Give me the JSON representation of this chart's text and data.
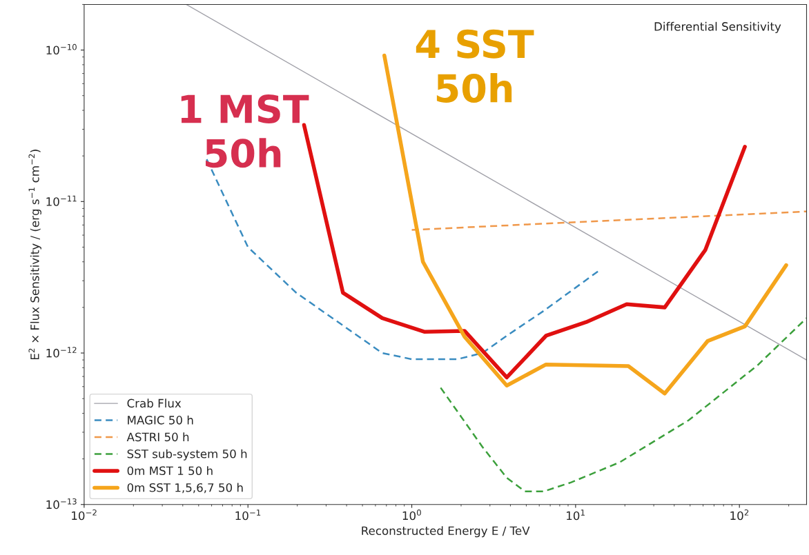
{
  "chart_data": {
    "type": "line",
    "xlabel": "Reconstructed Energy E / TeV",
    "ylabel": "E$^{2}$ × Flux Sensitivity / (erg s$^{−1}$ cm$^{−2}$)",
    "log": "xy",
    "grid": false,
    "legend": "bottom left",
    "xlim": [
      0.01,
      257
    ],
    "ylim": [
      1e-13,
      2e-10
    ],
    "xticks": [
      {
        "value": 0.01,
        "label": "10$^{−2}$"
      },
      {
        "value": 0.1,
        "label": "10$^{−1}$"
      },
      {
        "value": 1,
        "label": "10$^{0}$"
      },
      {
        "value": 10,
        "label": "10$^{1}$"
      },
      {
        "value": 100,
        "label": "10$^{2}$"
      }
    ],
    "yticks": [
      {
        "value": 1e-13,
        "label": "10$^{−13}$"
      },
      {
        "value": 1e-12,
        "label": "10$^{−12}$"
      },
      {
        "value": 1e-11,
        "label": "10$^{−11}$"
      },
      {
        "value": 1e-10,
        "label": "10$^{−10}$"
      }
    ],
    "annotations": [
      "Differential Sensitivity",
      "1 MST\n50h",
      "4 SST\n50h"
    ],
    "series": [
      {
        "name": "Crab Flux",
        "color": "#a0a0a8",
        "line_style": "solid",
        "x": [
          0.042,
          257
        ],
        "values": [
          2e-10,
          9e-13
        ]
      },
      {
        "name": "MAGIC 50 h",
        "color": "#3a8cc0",
        "line_style": "dashed",
        "x": [
          0.056,
          0.1,
          0.197,
          0.66,
          1.0,
          1.9,
          2.7,
          3.8,
          6.4,
          13.9
        ],
        "values": [
          1.9e-11,
          5e-12,
          2.5e-12,
          1e-12,
          9.1e-13,
          9.1e-13,
          1e-12,
          1.3e-12,
          1.9e-12,
          3.5e-12
        ]
      },
      {
        "name": "ASTRI 50 h",
        "color": "#f0984a",
        "line_style": "dashed",
        "x": [
          1.0,
          257
        ],
        "values": [
          6.5e-12,
          8.6e-12
        ]
      },
      {
        "name": "SST sub-system 50 h",
        "color": "#3ca03c",
        "line_style": "dashed",
        "x": [
          1.5,
          2.7,
          3.8,
          4.9,
          6.4,
          9.4,
          18.6,
          49,
          129,
          257
        ],
        "values": [
          5.9e-13,
          2.4e-13,
          1.5e-13,
          1.22e-13,
          1.22e-13,
          1.4e-13,
          1.9e-13,
          3.6e-13,
          8.3e-13,
          1.7e-12
        ]
      },
      {
        "name": "0m MST 1 50 h",
        "color": "#e01010",
        "line_style": "solid",
        "x": [
          0.22,
          0.38,
          0.66,
          1.2,
          2.1,
          3.8,
          6.6,
          11.6,
          20.5,
          35,
          62,
          108
        ],
        "values": [
          3.2e-11,
          2.5e-12,
          1.7e-12,
          1.38e-12,
          1.4e-12,
          6.9e-13,
          1.3e-12,
          1.6e-12,
          2.1e-12,
          2e-12,
          4.8e-12,
          2.3e-11
        ]
      },
      {
        "name": "0m SST 1,5,6,7 50 h",
        "color": "#f5a51c",
        "line_style": "solid",
        "x": [
          0.68,
          1.17,
          2.1,
          3.8,
          6.6,
          21,
          35,
          64,
          108,
          193
        ],
        "values": [
          9.2e-11,
          4e-12,
          1.28e-12,
          6.1e-13,
          8.4e-13,
          8.2e-13,
          5.4e-13,
          1.2e-12,
          1.5e-12,
          3.8e-12
        ]
      }
    ]
  }
}
